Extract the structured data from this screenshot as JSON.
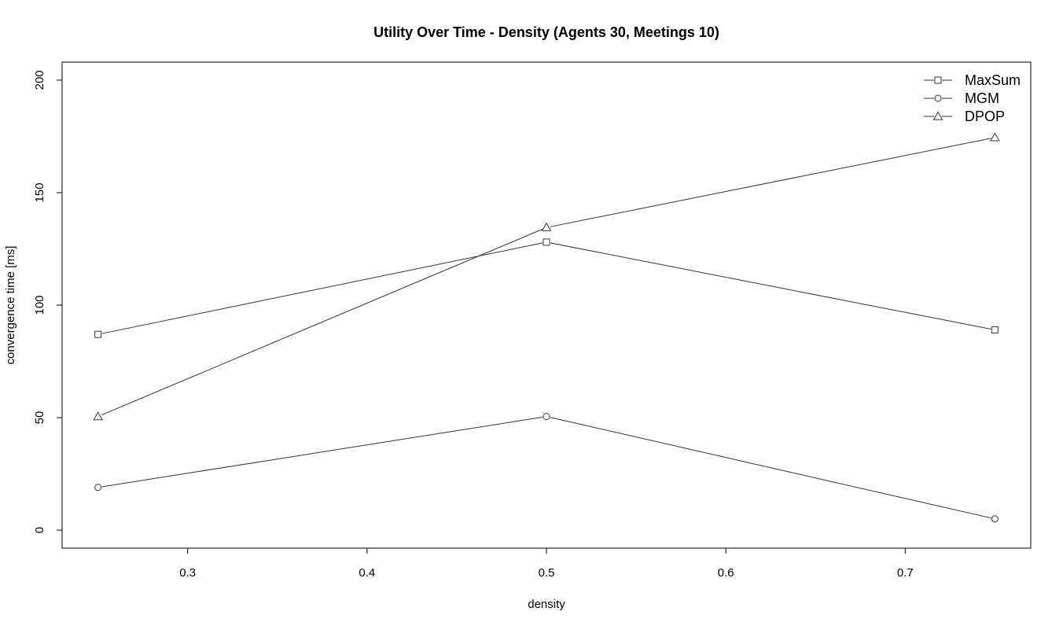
{
  "chart_data": {
    "type": "line",
    "title": "Utility Over Time - Density (Agents 30, Meetings 10)",
    "xlabel": "density",
    "ylabel": "convergence time [ms]",
    "x": [
      0.25,
      0.5,
      0.75
    ],
    "xlim": [
      0.23,
      0.77
    ],
    "ylim": [
      -8,
      208
    ],
    "xticks": [
      0.3,
      0.4,
      0.5,
      0.6,
      0.7
    ],
    "xtick_labels": [
      "0.3",
      "0.4",
      "0.5",
      "0.6",
      "0.7"
    ],
    "yticks": [
      0,
      50,
      100,
      150,
      200
    ],
    "ytick_labels": [
      "0",
      "50",
      "100",
      "150",
      "200"
    ],
    "grid": false,
    "legend_position": "top-right",
    "series": [
      {
        "name": "MaxSum",
        "marker": "square",
        "values": [
          87,
          128,
          89
        ]
      },
      {
        "name": "MGM",
        "marker": "circle",
        "values": [
          19,
          50.5,
          5
        ]
      },
      {
        "name": "DPOP",
        "marker": "triangle",
        "values": [
          50.5,
          134.5,
          174.5
        ]
      }
    ],
    "colors": {
      "line": "#333333",
      "axis": "#000000"
    }
  }
}
